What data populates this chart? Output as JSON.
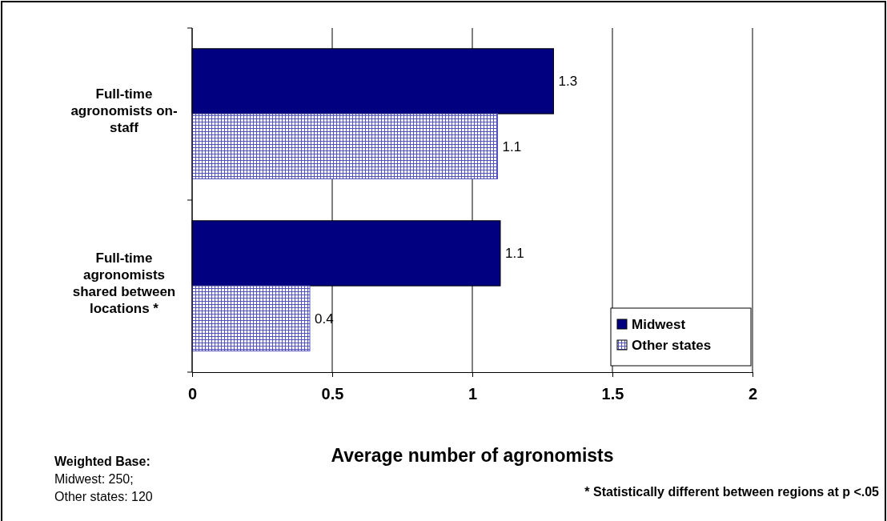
{
  "chart_data": {
    "type": "bar",
    "orientation": "horizontal",
    "categories": [
      "Full-time agronomists on-staff",
      "Full-time agronomists shared between locations *"
    ],
    "series": [
      {
        "name": "Midwest",
        "color": "#000080",
        "values": [
          1.29,
          1.1
        ],
        "value_labels": [
          "1.3",
          "1.1"
        ]
      },
      {
        "name": "Other states",
        "color": "#5050c0",
        "values": [
          1.09,
          0.42
        ],
        "value_labels": [
          "1.1",
          "0.4"
        ]
      }
    ],
    "xlim": [
      0,
      2
    ],
    "xticks": [
      0,
      0.5,
      1,
      1.5,
      2
    ],
    "xlabel": "Average number of agronomists",
    "grid": "x",
    "legend": "bottom right",
    "annotations": [
      "Weighted Base:\nMidwest: 250;\nOther states: 120",
      "* Statistically different between regions at p <.05"
    ]
  }
}
